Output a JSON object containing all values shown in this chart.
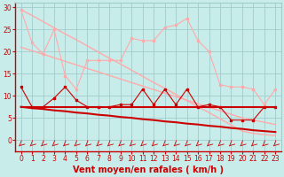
{
  "background_color": "#c8ecea",
  "grid_color": "#a0cccc",
  "xlabel": "Vent moyen/en rafales ( km/h )",
  "xlabel_color": "#cc0000",
  "xlabel_fontsize": 7,
  "xlim": [
    -0.5,
    23.5
  ],
  "ylim": [
    -2.5,
    31
  ],
  "yticks": [
    0,
    5,
    10,
    15,
    20,
    25,
    30
  ],
  "xticks": [
    0,
    1,
    2,
    3,
    4,
    5,
    6,
    7,
    8,
    9,
    10,
    11,
    12,
    13,
    14,
    15,
    16,
    17,
    18,
    19,
    20,
    21,
    22,
    23
  ],
  "x": [
    0,
    1,
    2,
    3,
    4,
    5,
    6,
    7,
    8,
    9,
    10,
    11,
    12,
    13,
    14,
    15,
    16,
    17,
    18,
    19,
    20,
    21,
    22,
    23
  ],
  "trend_upper1": [
    29.5,
    28.2,
    26.8,
    25.4,
    24.0,
    22.7,
    21.3,
    19.9,
    18.5,
    17.2,
    15.8,
    14.4,
    13.0,
    11.7,
    10.3,
    8.9,
    7.5,
    6.2,
    4.8,
    3.4,
    2.0,
    1.5,
    1.2,
    1.0
  ],
  "trend_upper2": [
    21.0,
    20.2,
    19.4,
    18.6,
    17.8,
    17.0,
    16.2,
    15.4,
    14.6,
    13.8,
    13.0,
    12.2,
    11.4,
    10.6,
    9.8,
    9.0,
    8.2,
    7.4,
    6.6,
    5.8,
    5.0,
    4.5,
    4.0,
    3.5
  ],
  "line_rafales": [
    29.5,
    22.0,
    19.5,
    25.0,
    14.5,
    11.5,
    18.0,
    18.0,
    18.0,
    18.0,
    23.0,
    22.5,
    22.5,
    25.5,
    26.0,
    27.5,
    22.5,
    20.0,
    12.5,
    12.0,
    12.0,
    11.5,
    8.0,
    11.5
  ],
  "trend_lower1": [
    7.5,
    7.5,
    7.5,
    7.5,
    7.5,
    7.5,
    7.5,
    7.5,
    7.5,
    7.5,
    7.5,
    7.5,
    7.5,
    7.5,
    7.5,
    7.5,
    7.5,
    7.5,
    7.5,
    7.5,
    7.5,
    7.5,
    7.5,
    7.5
  ],
  "trend_lower2": [
    7.5,
    7.2,
    7.0,
    6.7,
    6.5,
    6.2,
    6.0,
    5.7,
    5.5,
    5.2,
    5.0,
    4.7,
    4.5,
    4.2,
    4.0,
    3.7,
    3.5,
    3.2,
    3.0,
    2.7,
    2.5,
    2.2,
    2.0,
    1.8
  ],
  "line_moyen": [
    12.0,
    7.5,
    7.5,
    9.5,
    12.0,
    9.0,
    7.5,
    7.5,
    7.5,
    8.0,
    8.0,
    11.5,
    8.0,
    11.5,
    8.0,
    11.5,
    7.5,
    8.0,
    7.5,
    4.5,
    4.5,
    4.5,
    7.5,
    7.5
  ],
  "color_light": "#ffaaaa",
  "color_dark": "#cc0000",
  "tick_fontsize": 5.5,
  "tick_color": "#cc0000"
}
